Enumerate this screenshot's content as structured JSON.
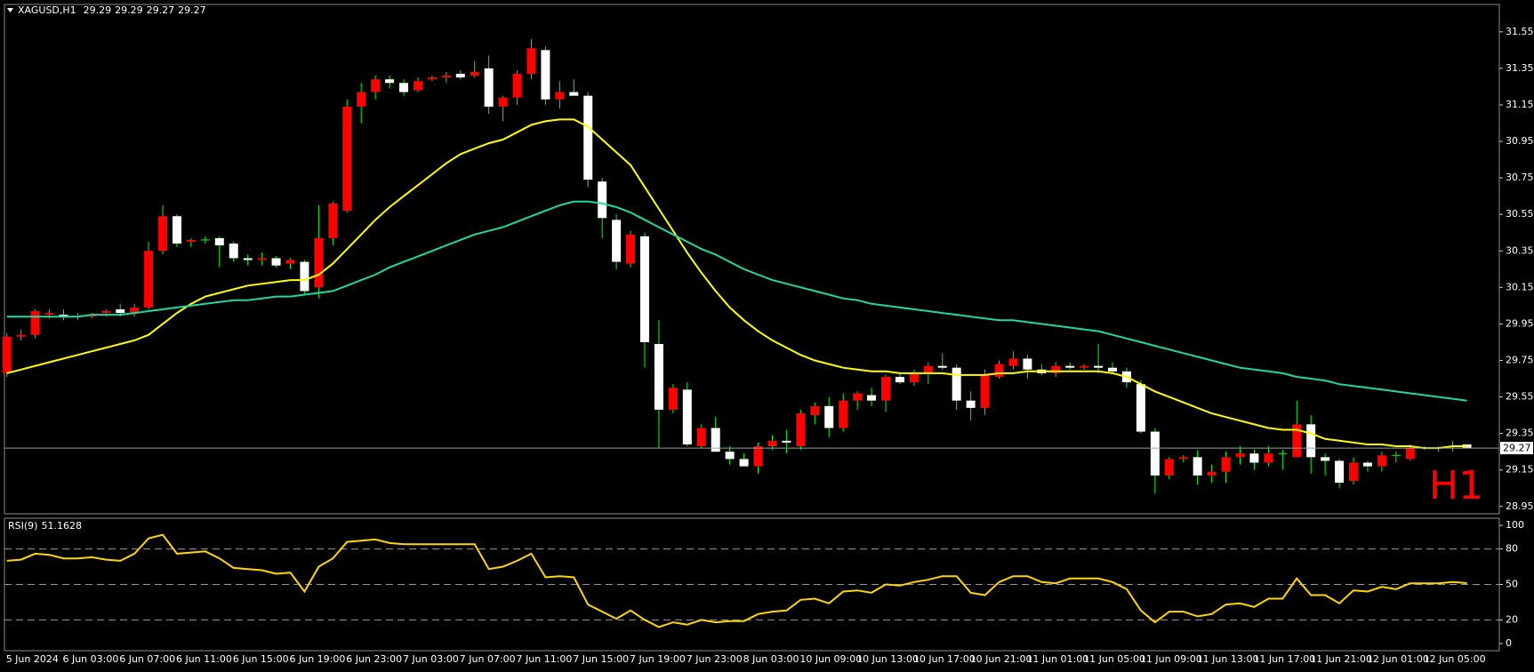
{
  "chart_data": [
    {
      "type": "candlestick",
      "title": "XAGUSD,H1",
      "watermark": "H1",
      "background": "#000000",
      "up_color": "#ff0000",
      "down_color": "#ffffff",
      "wick_color": "#00ff00",
      "price_line_color": "#8fa3a3",
      "watermark_color": "#ff0000",
      "categories": [
        "5 Jun 2024",
        null,
        null,
        null,
        "6 Jun 03:00",
        null,
        null,
        null,
        "6 Jun 07:00",
        null,
        null,
        null,
        "6 Jun 11:00",
        null,
        null,
        null,
        "6 Jun 15:00",
        null,
        null,
        null,
        "6 Jun 19:00",
        null,
        null,
        null,
        "6 Jun 23:00",
        null,
        null,
        null,
        "7 Jun 03:00",
        null,
        null,
        null,
        "7 Jun 07:00",
        null,
        null,
        null,
        "7 Jun 11:00",
        null,
        null,
        null,
        "7 Jun 15:00",
        null,
        null,
        null,
        "7 Jun 19:00",
        null,
        null,
        null,
        "7 Jun 23:00",
        null,
        null,
        null,
        "8 Jun 03:00",
        null,
        null,
        null,
        "10 Jun 09:00",
        null,
        null,
        null,
        "10 Jun 13:00",
        null,
        null,
        null,
        "10 Jun 17:00",
        null,
        null,
        null,
        "10 Jun 21:00",
        null,
        null,
        null,
        "11 Jun 01:00",
        null,
        null,
        null,
        "11 Jun 05:00",
        null,
        null,
        null,
        "11 Jun 09:00",
        null,
        null,
        null,
        "11 Jun 13:00",
        null,
        null,
        null,
        "11 Jun 17:00",
        null,
        null,
        null,
        "11 Jun 21:00",
        null,
        null,
        null,
        "12 Jun 01:00",
        null,
        null,
        null,
        "12 Jun 05:00",
        null,
        null,
        null
      ],
      "open": [
        29.68,
        29.88,
        29.89,
        30.0,
        30.0,
        29.99,
        29.99,
        30.01,
        30.03,
        30.01,
        30.04,
        30.35,
        30.54,
        30.4,
        30.41,
        30.42,
        30.39,
        30.31,
        30.3,
        30.31,
        30.28,
        30.29,
        30.15,
        30.42,
        30.57,
        31.14,
        31.22,
        31.29,
        31.27,
        31.23,
        31.29,
        31.3,
        31.32,
        31.31,
        31.35,
        31.14,
        31.19,
        31.32,
        31.45,
        31.18,
        31.22,
        31.2,
        30.73,
        30.52,
        30.28,
        30.43,
        29.84,
        29.48,
        29.59,
        29.28,
        29.38,
        29.25,
        29.21,
        29.17,
        29.28,
        29.31,
        29.28,
        29.45,
        29.5,
        29.38,
        29.53,
        29.56,
        29.53,
        29.66,
        29.63,
        29.68,
        29.72,
        29.71,
        29.53,
        29.49,
        29.66,
        29.72,
        29.76,
        29.7,
        29.68,
        29.72,
        29.71,
        29.72,
        29.71,
        29.69,
        29.62,
        29.36,
        29.12,
        29.21,
        29.22,
        29.12,
        29.14,
        29.22,
        29.24,
        29.19,
        29.24,
        29.22,
        29.4,
        29.22,
        29.2,
        29.09,
        29.19,
        29.17,
        29.23,
        29.21,
        29.27,
        29.27,
        29.28,
        29.29
      ],
      "high": [
        29.9,
        29.92,
        30.03,
        30.03,
        30.03,
        30.01,
        30.01,
        30.03,
        30.06,
        30.06,
        30.4,
        30.6,
        30.55,
        30.42,
        30.43,
        30.43,
        30.4,
        30.33,
        30.34,
        30.32,
        30.31,
        30.3,
        30.6,
        30.62,
        31.18,
        31.27,
        31.31,
        31.31,
        31.29,
        31.3,
        31.31,
        31.33,
        31.34,
        31.39,
        31.42,
        31.2,
        31.34,
        31.51,
        31.47,
        31.28,
        31.29,
        31.22,
        30.75,
        30.55,
        30.46,
        30.45,
        29.97,
        29.62,
        29.63,
        29.4,
        29.44,
        29.28,
        29.24,
        29.3,
        29.34,
        29.37,
        29.48,
        29.52,
        29.55,
        29.57,
        29.58,
        29.6,
        29.67,
        29.68,
        29.7,
        29.74,
        29.79,
        29.73,
        29.58,
        29.7,
        29.75,
        29.8,
        29.78,
        29.73,
        29.74,
        29.74,
        29.73,
        29.84,
        29.74,
        29.71,
        29.64,
        29.38,
        29.22,
        29.23,
        29.26,
        29.18,
        29.25,
        29.28,
        29.26,
        29.28,
        29.26,
        29.53,
        29.45,
        29.24,
        29.21,
        29.22,
        29.2,
        29.25,
        29.25,
        29.29,
        29.28,
        29.28,
        29.31,
        29.29
      ],
      "low": [
        29.66,
        29.86,
        29.87,
        29.98,
        29.97,
        29.97,
        29.98,
        29.99,
        29.99,
        29.99,
        30.03,
        30.33,
        30.37,
        30.37,
        30.39,
        30.26,
        30.29,
        30.27,
        30.27,
        30.26,
        30.25,
        30.11,
        30.09,
        30.38,
        30.56,
        31.05,
        31.18,
        31.24,
        31.2,
        31.22,
        31.28,
        31.27,
        31.29,
        31.3,
        31.1,
        31.06,
        31.15,
        31.29,
        31.15,
        31.13,
        31.2,
        30.7,
        30.42,
        30.25,
        30.26,
        29.71,
        29.27,
        29.46,
        29.28,
        29.27,
        29.25,
        29.18,
        29.17,
        29.13,
        29.26,
        29.24,
        29.26,
        29.4,
        29.33,
        29.36,
        29.48,
        29.5,
        29.47,
        29.62,
        29.61,
        29.62,
        29.7,
        29.48,
        29.42,
        29.45,
        29.65,
        29.7,
        29.65,
        29.67,
        29.66,
        29.7,
        29.7,
        29.68,
        29.68,
        29.6,
        29.35,
        29.02,
        29.1,
        29.19,
        29.07,
        29.08,
        29.08,
        29.18,
        29.15,
        29.17,
        29.15,
        29.22,
        29.13,
        29.12,
        29.05,
        29.07,
        29.14,
        29.14,
        29.19,
        29.2,
        29.26,
        29.25,
        29.25,
        29.27
      ],
      "close": [
        29.88,
        29.89,
        30.02,
        30.01,
        29.99,
        29.99,
        30.0,
        30.02,
        30.01,
        30.04,
        30.35,
        30.54,
        30.39,
        30.41,
        30.41,
        30.38,
        30.31,
        30.3,
        30.31,
        30.27,
        30.3,
        30.13,
        30.42,
        30.61,
        31.14,
        31.22,
        31.29,
        31.27,
        31.22,
        31.28,
        31.3,
        31.31,
        31.3,
        31.33,
        31.14,
        31.19,
        31.32,
        31.46,
        31.18,
        31.22,
        31.2,
        30.74,
        30.53,
        30.29,
        30.44,
        29.85,
        29.48,
        29.6,
        29.29,
        29.38,
        29.25,
        29.21,
        29.17,
        29.28,
        29.31,
        29.3,
        29.46,
        29.5,
        29.38,
        29.53,
        29.57,
        29.53,
        29.66,
        29.63,
        29.68,
        29.72,
        29.71,
        29.53,
        29.49,
        29.67,
        29.73,
        29.76,
        29.7,
        29.68,
        29.72,
        29.71,
        29.72,
        29.71,
        29.69,
        29.63,
        29.36,
        29.12,
        29.21,
        29.22,
        29.12,
        29.14,
        29.22,
        29.24,
        29.19,
        29.24,
        29.24,
        29.4,
        29.22,
        29.2,
        29.08,
        29.19,
        29.17,
        29.23,
        29.23,
        29.27,
        29.27,
        29.27,
        29.28,
        29.27
      ],
      "ma_lines": [
        {
          "color": "#ffff00",
          "values": [
            29.68,
            29.7,
            29.72,
            29.74,
            29.76,
            29.78,
            29.8,
            29.82,
            29.84,
            29.86,
            29.89,
            29.95,
            30.01,
            30.06,
            30.1,
            30.12,
            30.14,
            30.16,
            30.17,
            30.18,
            30.19,
            30.19,
            30.22,
            30.28,
            30.36,
            30.44,
            30.52,
            30.59,
            30.65,
            30.71,
            30.77,
            30.83,
            30.88,
            30.91,
            30.94,
            30.96,
            31.0,
            31.04,
            31.06,
            31.07,
            31.07,
            31.03,
            30.96,
            30.89,
            30.82,
            30.7,
            30.58,
            30.46,
            30.34,
            30.23,
            30.13,
            30.04,
            29.97,
            29.91,
            29.86,
            29.82,
            29.78,
            29.75,
            29.73,
            29.71,
            29.7,
            29.69,
            29.69,
            29.68,
            29.68,
            29.68,
            29.68,
            29.67,
            29.67,
            29.67,
            29.68,
            29.68,
            29.69,
            29.69,
            29.69,
            29.69,
            29.69,
            29.69,
            29.68,
            29.66,
            29.62,
            29.58,
            29.55,
            29.52,
            29.49,
            29.46,
            29.44,
            29.42,
            29.4,
            29.38,
            29.37,
            29.37,
            29.35,
            29.32,
            29.31,
            29.3,
            29.29,
            29.29,
            29.28,
            29.28,
            29.27,
            29.27,
            29.28,
            29.28
          ]
        },
        {
          "color": "#20d8a0",
          "values": [
            29.99,
            29.99,
            29.99,
            29.99,
            29.99,
            29.99,
            30.0,
            30.0,
            30.0,
            30.01,
            30.02,
            30.03,
            30.04,
            30.05,
            30.06,
            30.07,
            30.08,
            30.08,
            30.09,
            30.1,
            30.1,
            30.11,
            30.12,
            30.13,
            30.16,
            30.19,
            30.22,
            30.26,
            30.29,
            30.32,
            30.35,
            30.38,
            30.41,
            30.44,
            30.46,
            30.48,
            30.51,
            30.54,
            30.57,
            30.6,
            30.62,
            30.62,
            30.61,
            30.59,
            30.56,
            30.52,
            30.48,
            30.44,
            30.4,
            30.36,
            30.33,
            30.29,
            30.25,
            30.22,
            30.19,
            30.17,
            30.15,
            30.13,
            30.11,
            30.09,
            30.08,
            30.06,
            30.05,
            30.04,
            30.03,
            30.02,
            30.01,
            30.0,
            29.99,
            29.98,
            29.97,
            29.97,
            29.96,
            29.95,
            29.94,
            29.93,
            29.92,
            29.91,
            29.89,
            29.87,
            29.85,
            29.83,
            29.81,
            29.79,
            29.77,
            29.75,
            29.73,
            29.71,
            29.7,
            29.69,
            29.68,
            29.66,
            29.65,
            29.64,
            29.62,
            29.61,
            29.6,
            29.59,
            29.58,
            29.57,
            29.56,
            29.55,
            29.54,
            29.53
          ]
        }
      ],
      "ylim": [
        28.91,
        31.7
      ],
      "yticks": [
        31.55,
        31.35,
        31.15,
        30.95,
        30.75,
        30.55,
        30.35,
        30.15,
        29.95,
        29.75,
        29.55,
        29.35,
        29.15,
        28.95
      ]
    },
    {
      "type": "line",
      "title": "RSI(9)",
      "color": "#ffd700",
      "level_color": "#9a9a9a",
      "values": [
        70,
        71,
        76,
        75,
        72,
        72,
        73,
        71,
        70,
        76,
        89,
        92,
        76,
        77,
        78,
        72,
        64,
        63,
        62,
        59,
        60,
        44,
        65,
        72,
        86,
        87,
        88,
        85,
        84,
        84,
        84,
        84,
        84,
        84,
        63,
        65,
        70,
        76,
        56,
        57,
        56,
        33,
        27,
        21,
        28,
        20,
        14,
        18,
        16,
        20,
        18,
        19,
        19,
        25,
        27,
        28,
        37,
        38,
        34,
        44,
        45,
        43,
        50,
        49,
        52,
        54,
        57,
        57,
        43,
        41,
        52,
        57,
        57,
        52,
        51,
        55,
        55,
        55,
        52,
        46,
        28,
        18,
        27,
        27,
        23,
        25,
        33,
        34,
        31,
        38,
        38,
        55,
        41,
        41,
        34,
        45,
        44,
        48,
        46,
        51,
        51,
        51,
        52,
        51.1628
      ],
      "levels": [
        20,
        50,
        80
      ],
      "ylim": [
        -6,
        106
      ],
      "yticks": [
        0,
        20,
        50,
        80,
        100
      ]
    }
  ]
}
